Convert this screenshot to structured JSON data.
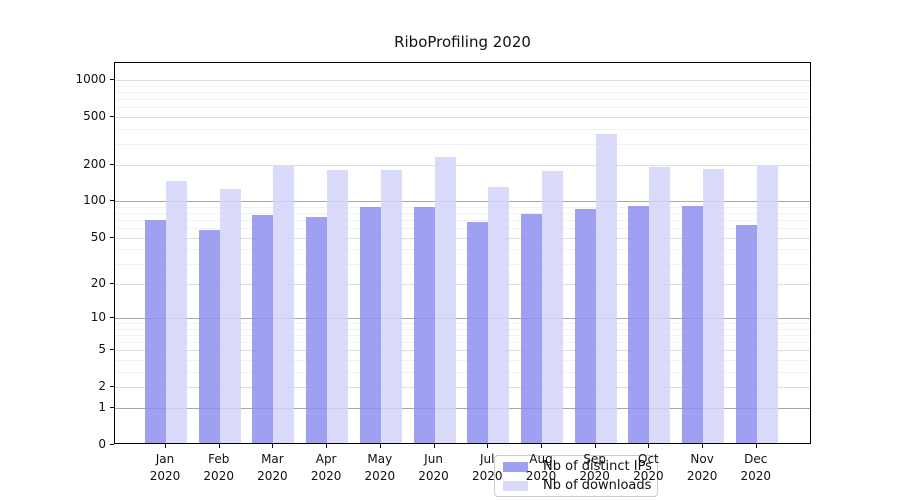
{
  "title": "RiboProfiling 2020",
  "chart_data": {
    "type": "bar",
    "title": "RiboProfiling 2020",
    "categories": [
      "Jan",
      "Feb",
      "Mar",
      "Apr",
      "May",
      "Jun",
      "Jul",
      "Aug",
      "Sep",
      "Oct",
      "Nov",
      "Dec"
    ],
    "category_year": "2020",
    "series": [
      {
        "name": "Nb of distinct IPs",
        "color": "rgba(143,143,240,0.85)",
        "values": [
          68,
          56,
          74,
          72,
          87,
          86,
          65,
          76,
          83,
          89,
          88,
          61
        ]
      },
      {
        "name": "Nb of downloads",
        "color": "rgba(211,211,250,0.85)",
        "values": [
          141,
          122,
          189,
          174,
          174,
          226,
          127,
          171,
          345,
          187,
          178,
          189
        ]
      }
    ],
    "xlabel": "",
    "ylabel": "",
    "y_axis": {
      "scale": "log1p",
      "ylim": [
        0,
        1391
      ],
      "tick_values": [
        0,
        1,
        2,
        5,
        10,
        20,
        50,
        100,
        200,
        500,
        1000
      ],
      "major_grid_values": [
        1,
        10,
        100
      ],
      "minor_grid_values": [
        3,
        4,
        6,
        7,
        8,
        9,
        30,
        40,
        60,
        70,
        80,
        90,
        300,
        400,
        600,
        700,
        800,
        900
      ]
    },
    "grid": "on",
    "legend_position": "lower center"
  }
}
